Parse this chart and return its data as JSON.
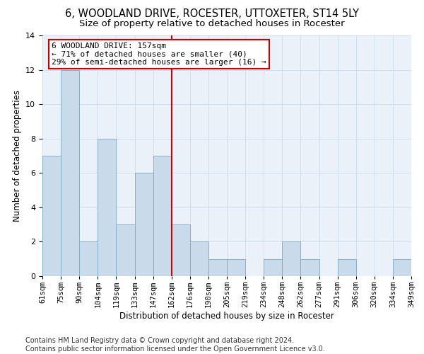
{
  "title": "6, WOODLAND DRIVE, ROCESTER, UTTOXETER, ST14 5LY",
  "subtitle": "Size of property relative to detached houses in Rocester",
  "xlabel": "Distribution of detached houses by size in Rocester",
  "ylabel": "Number of detached properties",
  "footer_line1": "Contains HM Land Registry data © Crown copyright and database right 2024.",
  "footer_line2": "Contains public sector information licensed under the Open Government Licence v3.0.",
  "bin_labels": [
    "61sqm",
    "75sqm",
    "90sqm",
    "104sqm",
    "119sqm",
    "133sqm",
    "147sqm",
    "162sqm",
    "176sqm",
    "190sqm",
    "205sqm",
    "219sqm",
    "234sqm",
    "248sqm",
    "262sqm",
    "277sqm",
    "291sqm",
    "306sqm",
    "320sqm",
    "334sqm",
    "349sqm"
  ],
  "counts": [
    7,
    12,
    2,
    8,
    3,
    6,
    7,
    3,
    2,
    1,
    1,
    0,
    1,
    2,
    1,
    0,
    1,
    0,
    0,
    1
  ],
  "bar_color": "#c9daea",
  "bar_edge_color": "#7aaac8",
  "grid_color": "#d0dff0",
  "vline_color": "#cc0000",
  "annotation_text": "6 WOODLAND DRIVE: 157sqm\n← 71% of detached houses are smaller (40)\n29% of semi-detached houses are larger (16) →",
  "annotation_box_color": "#cc0000",
  "ylim": [
    0,
    14
  ],
  "yticks": [
    0,
    2,
    4,
    6,
    8,
    10,
    12,
    14
  ],
  "title_fontsize": 10.5,
  "subtitle_fontsize": 9.5,
  "xlabel_fontsize": 8.5,
  "ylabel_fontsize": 8.5,
  "annotation_fontsize": 8,
  "tick_fontsize": 7.5,
  "footer_fontsize": 7,
  "background_color": "#eaf1f8"
}
